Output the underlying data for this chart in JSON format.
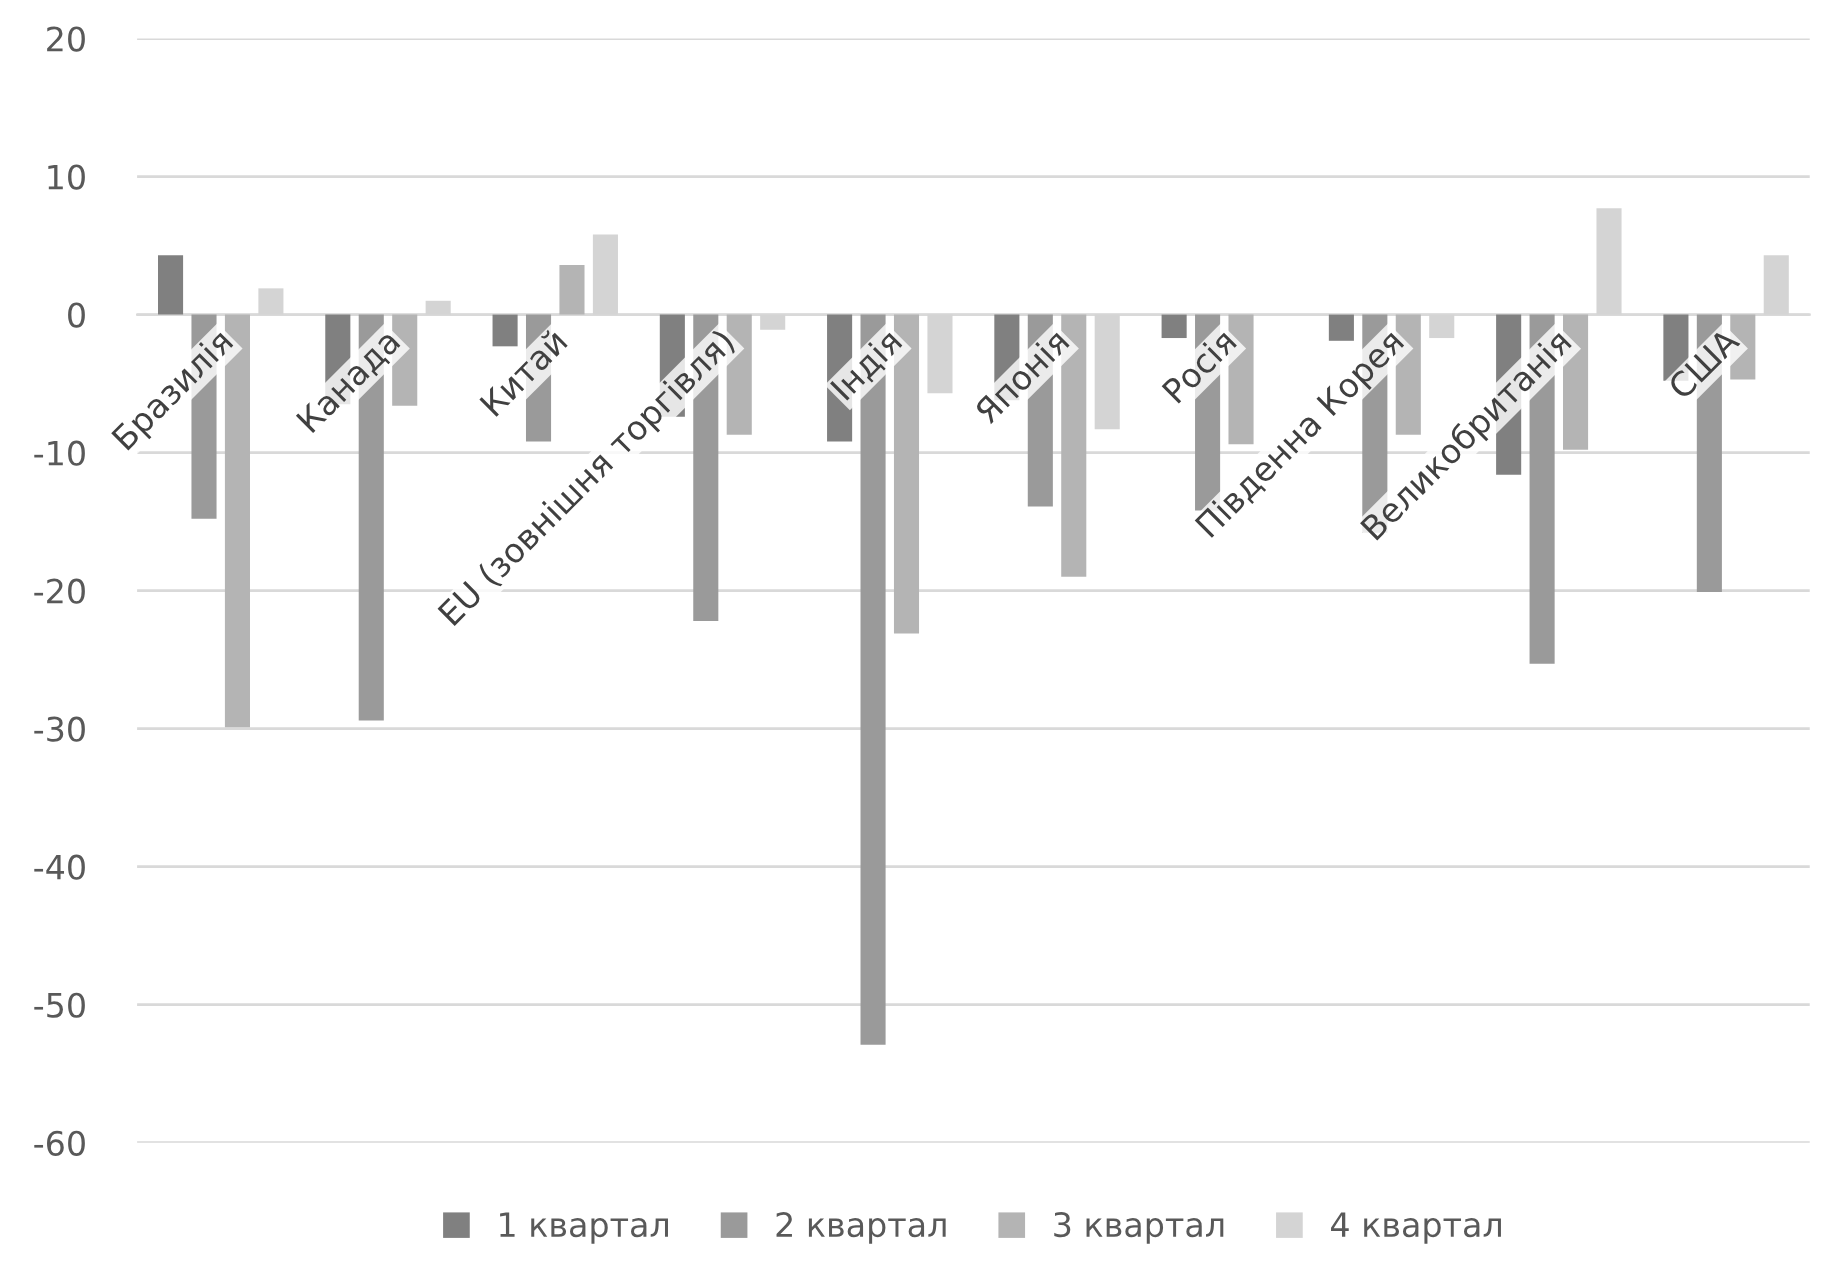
{
  "chart_data": {
    "type": "bar",
    "categories": [
      "Бразилія",
      "Канада",
      "Китай",
      "EU (зовнішня торгівля)",
      "Індія",
      "Японія",
      "Росія",
      "Південна Корея",
      "Великобританія",
      "США"
    ],
    "series": [
      {
        "name": "1 квартал",
        "color": "#808080",
        "values": [
          4.3,
          -6.5,
          -2.3,
          -7.4,
          -9.2,
          -6.2,
          -1.7,
          -1.9,
          -11.6,
          -4.8
        ]
      },
      {
        "name": "2 квартал",
        "color": "#9a9a9a",
        "values": [
          -14.8,
          -29.4,
          -9.2,
          -22.2,
          -52.9,
          -13.9,
          -14.2,
          -15.8,
          -25.3,
          -20.1
        ]
      },
      {
        "name": "3 квартал",
        "color": "#b4b4b4",
        "values": [
          -29.9,
          -6.6,
          3.6,
          -8.7,
          -23.1,
          -19.0,
          -9.4,
          -8.7,
          -9.8,
          -4.7
        ]
      },
      {
        "name": "4 квартал",
        "color": "#d4d4d4",
        "values": [
          1.9,
          1.0,
          5.8,
          -1.1,
          -5.7,
          -8.3,
          0,
          -1.7,
          7.7,
          4.3
        ]
      }
    ],
    "ylim": [
      -60,
      20
    ],
    "yticks": [
      -60,
      -50,
      -40,
      -30,
      -20,
      -10,
      0,
      10,
      20
    ],
    "grid": "y",
    "legend": "bottom"
  }
}
